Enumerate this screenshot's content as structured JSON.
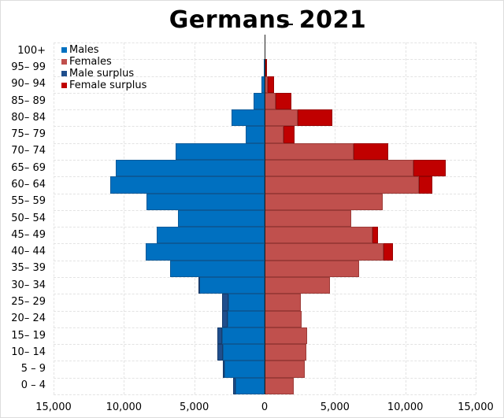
{
  "chart_data": {
    "type": "bar",
    "subtype": "population-pyramid",
    "title": "Germans 2021",
    "xlabel": "",
    "ylabel": "",
    "xlim": [
      -15000,
      15000
    ],
    "x_ticks": [
      "15,000",
      "10,000",
      "5,000",
      "0",
      "5,000",
      "10,000",
      "15,000"
    ],
    "x_tick_values": [
      -15000,
      -10000,
      -5000,
      0,
      5000,
      10000,
      15000
    ],
    "grid": true,
    "legend_position": "upper-left",
    "colors": {
      "males": "#0070c0",
      "females": "#c0504d",
      "male_surplus": "#1f4e8c",
      "female_surplus": "#c00000"
    },
    "categories": [
      "100+",
      "95– 99",
      "90– 94",
      "85– 89",
      "80– 84",
      "75– 79",
      "70– 74",
      "65– 69",
      "60– 64",
      "55– 59",
      "50– 54",
      "45– 49",
      "40– 44",
      "35– 39",
      "30– 34",
      "25– 29",
      "20– 24",
      "15– 19",
      "10– 14",
      "5 – 9",
      "0 – 4"
    ],
    "series": [
      {
        "name": "Males",
        "values": [
          5,
          30,
          230,
          800,
          2350,
          1350,
          6350,
          10600,
          10950,
          8400,
          6150,
          7650,
          8450,
          6700,
          4700,
          3050,
          3050,
          3350,
          3350,
          2950,
          2250
        ]
      },
      {
        "name": "Females",
        "values": [
          20,
          150,
          700,
          1900,
          4800,
          2100,
          8800,
          12900,
          11900,
          8400,
          6150,
          8050,
          9100,
          6700,
          4650,
          2600,
          2650,
          3050,
          2950,
          2850,
          2050
        ]
      }
    ],
    "legend": [
      "Males",
      "Females",
      "Male surplus",
      "Female surplus"
    ]
  },
  "legend": {
    "males": "Males",
    "females": "Females",
    "male_surplus": "Male surplus",
    "female_surplus": "Female surplus"
  }
}
